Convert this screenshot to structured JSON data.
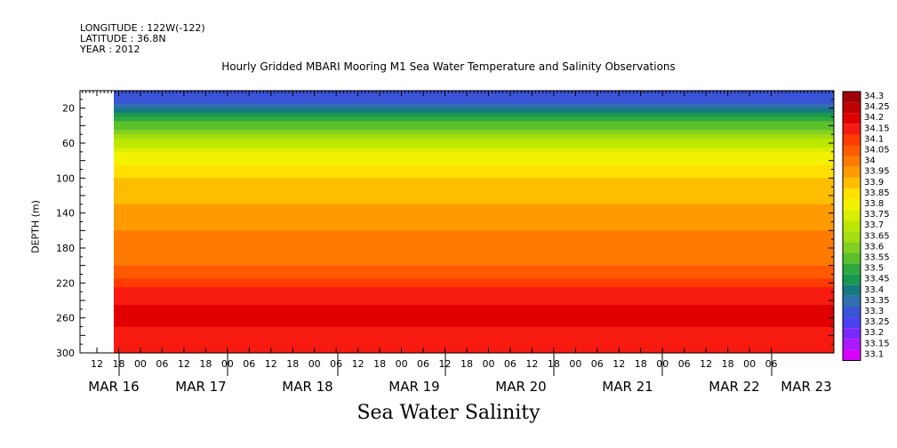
{
  "header": {
    "longitude": "LONGITUDE : 122W(-122)",
    "latitude": "LATITUDE : 36.8N",
    "year": "YEAR : 2012"
  },
  "chart_data": {
    "type": "heatmap",
    "title": "Hourly Gridded MBARI Mooring M1 Sea Water Temperature and Salinity Observations",
    "xlabel": "Sea Water Salinity",
    "ylabel": "DEPTH (m)",
    "ylim": [
      300,
      0
    ],
    "y_ticks": [
      20,
      60,
      100,
      140,
      180,
      220,
      260,
      300
    ],
    "x_hour_ticks": [
      "12",
      "18",
      "00",
      "06",
      "12",
      "18",
      "00",
      "06",
      "12",
      "18",
      "00",
      "06",
      "12",
      "18",
      "00",
      "06",
      "12",
      "18",
      "00",
      "06",
      "12",
      "18",
      "00",
      "06",
      "12",
      "18",
      "00",
      "06",
      "12",
      "18",
      "00",
      "06"
    ],
    "x_date_ticks": [
      "MAR 16",
      "MAR 17",
      "MAR 18",
      "MAR 19",
      "MAR 20",
      "MAR 21",
      "MAR 22",
      "MAR 23"
    ],
    "colorbar_levels": [
      "34.3",
      "34.25",
      "34.2",
      "34.15",
      "34.1",
      "34.05",
      "34",
      "33.95",
      "33.9",
      "33.85",
      "33.8",
      "33.75",
      "33.7",
      "33.65",
      "33.6",
      "33.55",
      "33.5",
      "33.45",
      "33.4",
      "33.35",
      "33.3",
      "33.25",
      "33.2",
      "33.15",
      "33.1"
    ],
    "colorbar_colors": [
      "#a0000a",
      "#c00000",
      "#e00000",
      "#f61a10",
      "#ff3a00",
      "#ff5a00",
      "#ff7a00",
      "#ff9a00",
      "#ffbd00",
      "#ffe000",
      "#f2f200",
      "#d8ee00",
      "#bde600",
      "#a2de10",
      "#82d020",
      "#5cc02a",
      "#30a840",
      "#199850",
      "#187880",
      "#3070b0",
      "#3a54d8",
      "#4a40f0",
      "#7a28ff",
      "#aa18ff",
      "#d800ff"
    ],
    "profile": [
      {
        "depth": 10,
        "salinity": 33.3
      },
      {
        "depth": 30,
        "salinity": 33.5
      },
      {
        "depth": 50,
        "salinity": 33.65
      },
      {
        "depth": 70,
        "salinity": 33.8
      },
      {
        "depth": 100,
        "salinity": 33.9
      },
      {
        "depth": 130,
        "salinity": 33.95
      },
      {
        "depth": 160,
        "salinity": 34.0
      },
      {
        "depth": 200,
        "salinity": 34.05
      },
      {
        "depth": 225,
        "salinity": 34.15
      },
      {
        "depth": 245,
        "salinity": 34.2
      },
      {
        "depth": 255,
        "salinity": 34.25
      },
      {
        "depth": 270,
        "salinity": 34.2
      },
      {
        "depth": 300,
        "salinity": 34.15
      }
    ]
  }
}
